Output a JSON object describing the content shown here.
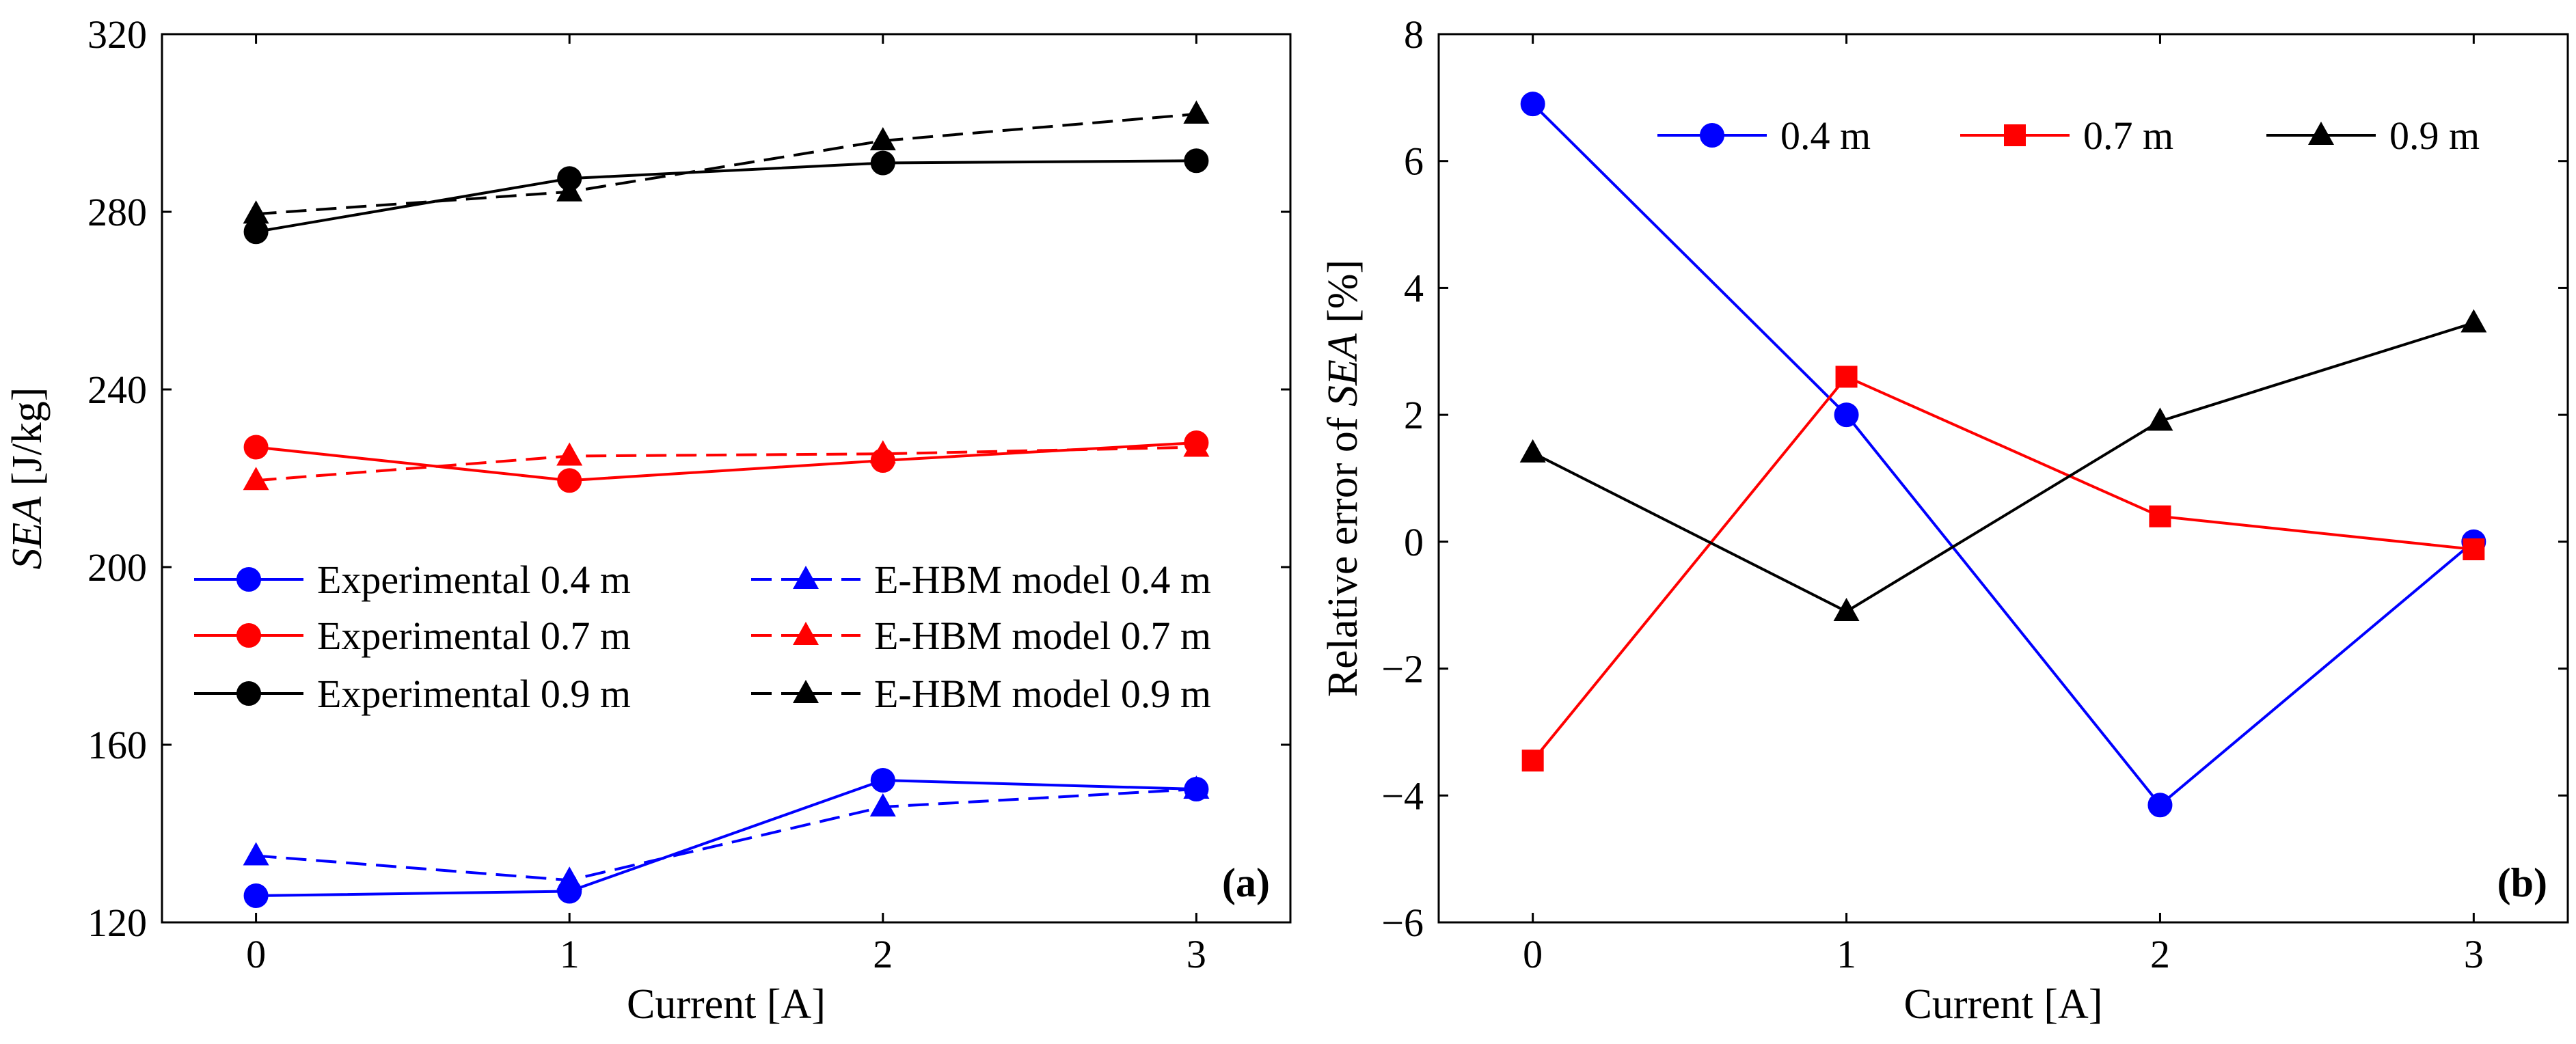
{
  "chart_data": [
    {
      "type": "line",
      "panel_label": "(a)",
      "xlabel": "Current [A]",
      "ylabel_italic": "SEA",
      "ylabel_unit": " [J/kg]",
      "x": [
        0,
        1,
        2,
        3
      ],
      "x_ticks": [
        "0",
        "1",
        "2",
        "3"
      ],
      "xlim": [
        -0.3,
        3.3
      ],
      "ylim": [
        120,
        320
      ],
      "y_ticks": [
        "120",
        "160",
        "200",
        "240",
        "280",
        "320"
      ],
      "legend_position": "lower-left, two columns",
      "series": [
        {
          "name": "Experimental 0.4 m",
          "color": "#0000ff",
          "dash": "solid",
          "marker": "circle",
          "values": [
            126,
            127,
            152,
            150
          ]
        },
        {
          "name": "E-HBM model 0.4 m",
          "color": "#0000ff",
          "dash": "dashed",
          "marker": "triangle",
          "values": [
            135,
            129.5,
            146,
            150
          ]
        },
        {
          "name": "Experimental 0.7 m",
          "color": "#ff0000",
          "dash": "solid",
          "marker": "circle",
          "values": [
            227,
            219.5,
            224,
            228
          ]
        },
        {
          "name": "E-HBM model 0.7 m",
          "color": "#ff0000",
          "dash": "dashed",
          "marker": "triangle",
          "values": [
            219.5,
            225,
            225.5,
            227
          ]
        },
        {
          "name": "Experimental 0.9 m",
          "color": "#000000",
          "dash": "solid",
          "marker": "circle",
          "values": [
            275.5,
            287.5,
            291,
            291.5
          ]
        },
        {
          "name": "E-HBM model 0.9 m",
          "color": "#000000",
          "dash": "dashed",
          "marker": "triangle",
          "values": [
            279.5,
            284.5,
            296,
            302
          ]
        }
      ]
    },
    {
      "type": "line",
      "panel_label": "(b)",
      "xlabel": "Current [A]",
      "ylabel_prefix": "Relative error of ",
      "ylabel_italic": "SEA",
      "ylabel_unit": " [%]",
      "x": [
        0,
        1,
        2,
        3
      ],
      "x_ticks": [
        "0",
        "1",
        "2",
        "3"
      ],
      "xlim": [
        -0.3,
        3.3
      ],
      "ylim": [
        -6,
        8
      ],
      "y_ticks": [
        "−6",
        "−4",
        "−2",
        "0",
        "2",
        "4",
        "6",
        "8"
      ],
      "legend_position": "top, single row",
      "series": [
        {
          "name": "0.4 m",
          "color": "#0000ff",
          "dash": "solid",
          "marker": "circle",
          "values": [
            6.9,
            2.0,
            -4.15,
            0.0
          ]
        },
        {
          "name": "0.7 m",
          "color": "#ff0000",
          "dash": "solid",
          "marker": "square",
          "values": [
            -3.45,
            2.6,
            0.4,
            -0.12
          ]
        },
        {
          "name": "0.9 m",
          "color": "#000000",
          "dash": "solid",
          "marker": "triangle",
          "values": [
            1.4,
            -1.1,
            1.9,
            3.45
          ]
        }
      ]
    }
  ]
}
